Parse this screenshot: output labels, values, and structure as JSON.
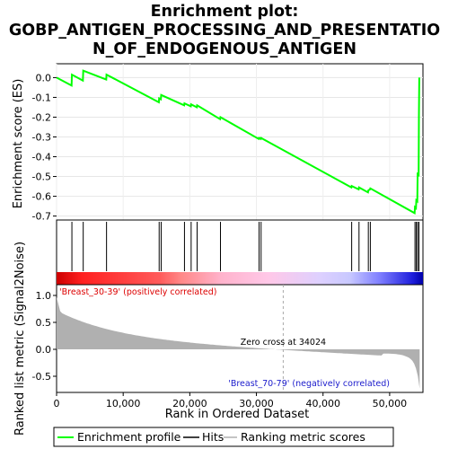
{
  "chart_data": {
    "title_lines": [
      "Enrichment plot:",
      "GOBP_ANTIGEN_PROCESSING_AND_PRESENTATIO",
      "N_OF_ENDOGENOUS_ANTIGEN"
    ],
    "type": "line",
    "xlabel": "Rank in Ordered Dataset",
    "ylabel_top": "Enrichment score (ES)",
    "ylabel_bottom": "Ranked list metric (Signal2Noise)",
    "xlim": [
      0,
      55000
    ],
    "x_ticks": [
      0,
      10000,
      20000,
      30000,
      40000,
      50000
    ],
    "x_tick_labels": [
      "0",
      "10,000",
      "20,000",
      "30,000",
      "40,000",
      "50,000"
    ],
    "es_ylim": [
      -0.72,
      0.07
    ],
    "es_ticks": [
      0.0,
      -0.1,
      -0.2,
      -0.3,
      -0.4,
      -0.5,
      -0.6,
      -0.7
    ],
    "es_tick_labels": [
      "0.0",
      "-0.1",
      "-0.2",
      "-0.3",
      "-0.4",
      "-0.5",
      "-0.6",
      "-0.7"
    ],
    "metric_ylim": [
      -0.8,
      1.2
    ],
    "metric_ticks": [
      1.0,
      0.5,
      0.0,
      -0.5
    ],
    "metric_tick_labels": [
      "1.0",
      "0.5",
      "0.0",
      "-0.5"
    ],
    "hits": [
      2300,
      4000,
      7500,
      15400,
      15700,
      19200,
      20200,
      21100,
      24600,
      30400,
      30700,
      44300,
      45400,
      46800,
      47100,
      53800,
      54000,
      54200,
      54400
    ],
    "es_curve": {
      "x": [
        0,
        2250,
        2300,
        3950,
        4000,
        7450,
        7500,
        15350,
        15400,
        15650,
        15700,
        19150,
        19200,
        20150,
        20200,
        21050,
        21100,
        24550,
        24600,
        30350,
        30400,
        30650,
        30700,
        44250,
        44300,
        45350,
        45400,
        46750,
        46800,
        47050,
        47100,
        53750,
        53800,
        53950,
        54000,
        54150,
        54200,
        54350,
        54400,
        54450
      ],
      "y": [
        0.0,
        -0.04,
        0.015,
        -0.015,
        0.035,
        -0.01,
        0.015,
        -0.125,
        -0.105,
        -0.11,
        -0.088,
        -0.14,
        -0.13,
        -0.145,
        -0.135,
        -0.15,
        -0.14,
        -0.21,
        -0.2,
        -0.31,
        -0.305,
        -0.31,
        -0.305,
        -0.555,
        -0.548,
        -0.565,
        -0.555,
        -0.58,
        -0.57,
        -0.565,
        -0.56,
        -0.685,
        -0.655,
        -0.66,
        -0.62,
        -0.625,
        -0.48,
        -0.5,
        -0.2,
        0.0
      ]
    },
    "zero_cross": 34024,
    "zero_cross_label": "Zero cross at 34024",
    "pos_label": "'Breast_30-39' (positively correlated)",
    "neg_label": "'Breast_70-79' (negatively correlated)",
    "legend": [
      "Enrichment profile",
      "Hits",
      "Ranking metric scores"
    ],
    "colors": {
      "es_line": "#00ff00",
      "hit": "#000000",
      "metric_fill": "#b0b0b0",
      "pos_text": "#dd0000",
      "neg_text": "#1a1acc",
      "zero_line": "#aaaaaa"
    }
  }
}
